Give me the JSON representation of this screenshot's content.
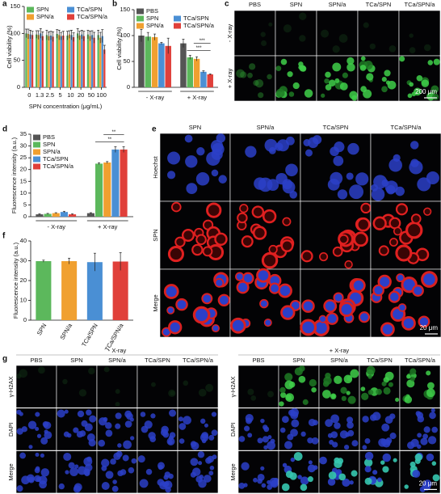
{
  "chart_data": [
    {
      "type": "bar",
      "label": "a",
      "ylabel": "Cell viability (%)",
      "xlabel": "SPN concentration (μg/mL)",
      "categories": [
        "0",
        "1.3",
        "2.5",
        "5",
        "10",
        "20",
        "50",
        "100"
      ],
      "series": [
        {
          "name": "SPN",
          "color": "#5cb85c",
          "values": [
            100,
            98,
            97,
            99,
            96,
            100,
            98,
            97
          ],
          "errors": [
            8,
            7,
            9,
            8,
            8,
            9,
            8,
            9
          ]
        },
        {
          "name": "SPN/a",
          "color": "#f0a030",
          "values": [
            99,
            97,
            95,
            97,
            98,
            96,
            95,
            92
          ],
          "errors": [
            9,
            8,
            8,
            9,
            7,
            8,
            9,
            10
          ]
        },
        {
          "name": "TCa/SPN",
          "color": "#4a8fd4",
          "values": [
            98,
            100,
            96,
            95,
            97,
            98,
            97,
            95
          ],
          "errors": [
            8,
            9,
            8,
            7,
            9,
            8,
            8,
            12
          ]
        },
        {
          "name": "TCa/SPN/a",
          "color": "#e0403a",
          "values": [
            97,
            95,
            94,
            96,
            93,
            95,
            92,
            70
          ],
          "errors": [
            7,
            8,
            9,
            8,
            8,
            9,
            10,
            8
          ]
        }
      ],
      "ylim": [
        0,
        150
      ],
      "yticks": [
        0,
        50,
        100,
        150
      ]
    },
    {
      "type": "bar",
      "label": "b",
      "ylabel": "Cell viability (%)",
      "categories": [
        "- X-ray",
        "+ X-ray"
      ],
      "series": [
        {
          "name": "PBS",
          "color": "#555555",
          "values": [
            100,
            85
          ],
          "errors": [
            12,
            8
          ]
        },
        {
          "name": "SPN",
          "color": "#5cb85c",
          "values": [
            98,
            58
          ],
          "errors": [
            8,
            4
          ]
        },
        {
          "name": "SPN/a",
          "color": "#f0a030",
          "values": [
            97,
            55
          ],
          "errors": [
            6,
            4
          ]
        },
        {
          "name": "TCa/SPN",
          "color": "#4a8fd4",
          "values": [
            85,
            30
          ],
          "errors": [
            2,
            2
          ]
        },
        {
          "name": "TCa/SPN/a",
          "color": "#e0403a",
          "values": [
            80,
            25
          ],
          "errors": [
            15,
            1
          ]
        }
      ],
      "annotations": [
        "***",
        "***"
      ],
      "ylim": [
        0,
        150
      ],
      "yticks": [
        0,
        50,
        100,
        150
      ]
    },
    {
      "type": "bar",
      "label": "d",
      "ylabel": "Fluorescence intensity (a.u.)",
      "categories": [
        "- X-ray",
        "+ X-ray"
      ],
      "series": [
        {
          "name": "PBS",
          "color": "#555555",
          "values": [
            1,
            1.5
          ],
          "errors": [
            0.2,
            0.2
          ]
        },
        {
          "name": "SPN",
          "color": "#5cb85c",
          "values": [
            1.2,
            22.5
          ],
          "errors": [
            0.2,
            0.4
          ]
        },
        {
          "name": "SPN/a",
          "color": "#f0a030",
          "values": [
            1.5,
            23
          ],
          "errors": [
            0.2,
            0.4
          ]
        },
        {
          "name": "TCa/SPN",
          "color": "#4a8fd4",
          "values": [
            2,
            28.5
          ],
          "errors": [
            0.3,
            1.2
          ]
        },
        {
          "name": "TCa/SPN/a",
          "color": "#e0403a",
          "values": [
            1,
            28.5
          ],
          "errors": [
            0.2,
            1.2
          ]
        }
      ],
      "annotations": [
        "**",
        "**"
      ],
      "ylim": [
        0,
        35
      ],
      "yticks": [
        0,
        5,
        10,
        15,
        20,
        25,
        30,
        35
      ]
    },
    {
      "type": "bar",
      "label": "f",
      "ylabel": "Fluorescence intensity (a.u.)",
      "categories": [
        "SPN",
        "SPN/a",
        "TCa/SPN",
        "TCa/SPN/a"
      ],
      "values": [
        29.8,
        29.8,
        29.3,
        29.6
      ],
      "errors": [
        0.5,
        1.5,
        4.5,
        4.5
      ],
      "colors": [
        "#5cb85c",
        "#f0a030",
        "#4a8fd4",
        "#e0403a"
      ],
      "ylim": [
        0,
        40
      ],
      "yticks": [
        0,
        10,
        20,
        30,
        40
      ]
    }
  ],
  "image_panels": {
    "c": {
      "label": "c",
      "columns": [
        "PBS",
        "SPN",
        "SPN/a",
        "TCa/SPN",
        "TCa/SPN/a"
      ],
      "rows": [
        "- X-ray",
        "+ X-ray"
      ],
      "scale_bar": "200 μm"
    },
    "e": {
      "label": "e",
      "columns": [
        "SPN",
        "SPN/a",
        "TCa/SPN",
        "TCa/SPN/a"
      ],
      "rows": [
        "Hoechst",
        "SPN",
        "Merge"
      ],
      "scale_bar": "20 μm"
    },
    "g": {
      "label": "g",
      "groups": [
        {
          "title": "- X-ray",
          "columns": [
            "PBS",
            "SPN",
            "SPN/a",
            "TCa/SPN",
            "TCa/SPN/a"
          ],
          "rows": [
            "γ-H2AX",
            "DAPI",
            "Merge"
          ]
        },
        {
          "title": "+ X-ray",
          "columns": [
            "PBS",
            "SPN",
            "SPN/a",
            "TCa/SPN",
            "TCa/SPN/a"
          ],
          "rows": [
            "γ-H2AX",
            "DAPI",
            "Merge"
          ]
        }
      ],
      "scale_bar": "20 μm"
    }
  }
}
